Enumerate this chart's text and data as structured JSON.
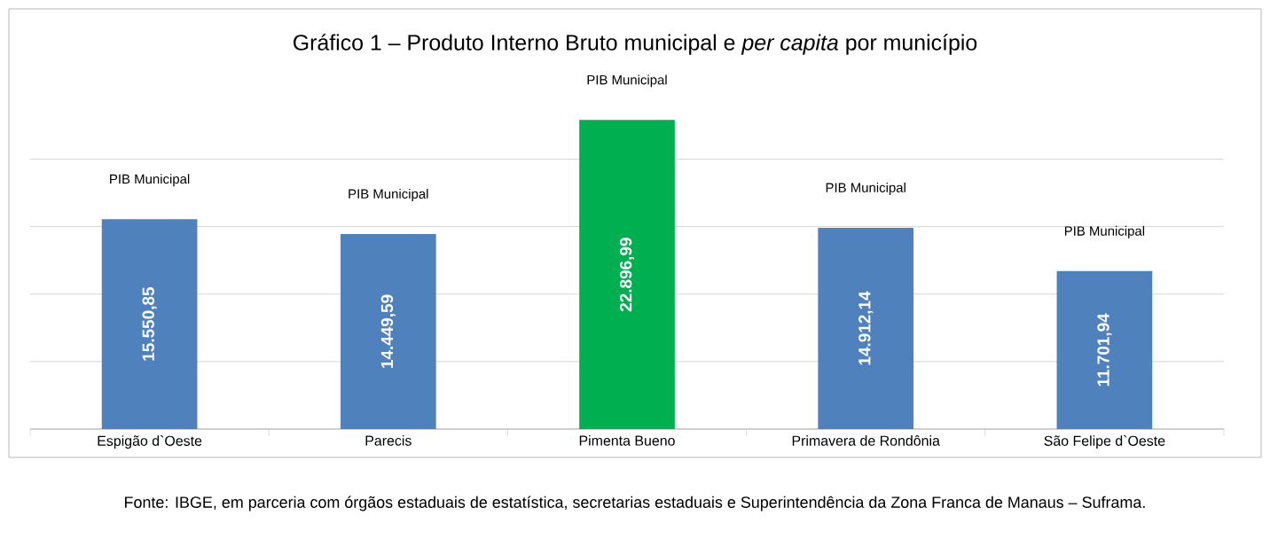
{
  "chart_data": {
    "type": "bar",
    "title": "Gráfico 1 – Produto Interno Bruto municipal e *per capita* por município",
    "categories": [
      "Espigão d`Oeste",
      "Parecis",
      "Pimenta Bueno",
      "Primavera de Rondônia",
      "São Felipe d`Oeste"
    ],
    "values": [
      15550.85,
      14449.59,
      22896.99,
      14912.14,
      11701.94
    ],
    "value_labels": [
      "15.550,85",
      "14.449,59",
      "22.896,99",
      "14.912,14",
      "11.701,94"
    ],
    "colors": [
      "#4f81bd",
      "#4f81bd",
      "#00b050",
      "#4f81bd",
      "#4f81bd"
    ],
    "grid": "y",
    "tick_labels": "x",
    "annotations": [
      {
        "text": "PIB Municipal",
        "x": "Espigão d`Oeste",
        "y": 15550.85
      },
      {
        "text": "PIB Municipal",
        "x": "Parecis",
        "y": 14449.59
      },
      {
        "text": "PIB Municipal",
        "x": "Pimenta Bueno",
        "y": 22896.99
      },
      {
        "text": "PIB Municipal",
        "x": "Primavera de Rondônia",
        "y": 14912.14
      },
      {
        "text": "PIB Municipal",
        "x": "São Felipe d`Oeste",
        "y": 11701.94
      },
      "Fonte: IBGE, em parceria com órgãos estaduais de estatística, secretarias estaduais e Superintendência da Zona Franca de Manaus – Suframa."
    ]
  }
}
